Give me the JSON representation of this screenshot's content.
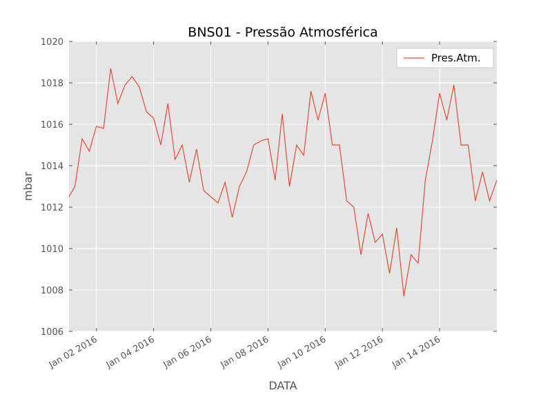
{
  "chart_data": {
    "type": "line",
    "title": "BNS01 - Pressão Atmosférica",
    "x_label": "DATA",
    "y_label": "mbar",
    "x": [
      "2016-01-01T01:00",
      "2016-01-01T06:00",
      "2016-01-01T12:00",
      "2016-01-01T18:00",
      "2016-01-02T00:00",
      "2016-01-02T06:00",
      "2016-01-02T12:00",
      "2016-01-02T18:00",
      "2016-01-03T00:00",
      "2016-01-03T06:00",
      "2016-01-03T12:00",
      "2016-01-03T18:00",
      "2016-01-04T00:00",
      "2016-01-04T06:00",
      "2016-01-04T12:00",
      "2016-01-04T18:00",
      "2016-01-05T00:00",
      "2016-01-05T06:00",
      "2016-01-05T12:00",
      "2016-01-05T18:00",
      "2016-01-06T00:00",
      "2016-01-06T06:00",
      "2016-01-06T12:00",
      "2016-01-06T18:00",
      "2016-01-07T00:00",
      "2016-01-07T06:00",
      "2016-01-07T12:00",
      "2016-01-07T18:00",
      "2016-01-08T00:00",
      "2016-01-08T06:00",
      "2016-01-08T12:00",
      "2016-01-08T18:00",
      "2016-01-09T00:00",
      "2016-01-09T06:00",
      "2016-01-09T12:00",
      "2016-01-09T18:00",
      "2016-01-10T00:00",
      "2016-01-10T06:00",
      "2016-01-10T12:00",
      "2016-01-10T18:00",
      "2016-01-11T00:00",
      "2016-01-11T06:00",
      "2016-01-11T12:00",
      "2016-01-11T18:00",
      "2016-01-12T00:00",
      "2016-01-12T06:00",
      "2016-01-12T12:00",
      "2016-01-12T18:00",
      "2016-01-13T00:00",
      "2016-01-13T06:00",
      "2016-01-13T12:00",
      "2016-01-13T18:00",
      "2016-01-14T00:00",
      "2016-01-14T06:00",
      "2016-01-14T12:00",
      "2016-01-14T18:00",
      "2016-01-15T00:00",
      "2016-01-15T06:00",
      "2016-01-15T12:00",
      "2016-01-15T18:00",
      "2016-01-16T00:00"
    ],
    "series": [
      {
        "name": "Pres.Atm.",
        "color": "#e24a33",
        "values": [
          1012.5,
          1013.0,
          1015.3,
          1014.7,
          1015.9,
          1015.8,
          1018.7,
          1017.0,
          1017.9,
          1018.3,
          1017.8,
          1016.6,
          1016.3,
          1015.0,
          1017.0,
          1014.3,
          1015.0,
          1013.2,
          1014.8,
          1012.8,
          1012.5,
          1012.2,
          1013.2,
          1011.5,
          1013.0,
          1013.7,
          1015.0,
          1015.2,
          1015.3,
          1013.3,
          1016.5,
          1013.0,
          1015.0,
          1014.5,
          1017.6,
          1016.2,
          1017.5,
          1015.0,
          1015.0,
          1012.3,
          1012.0,
          1009.7,
          1011.7,
          1010.3,
          1010.7,
          1008.8,
          1011.0,
          1007.7,
          1009.7,
          1009.3,
          1013.3,
          1015.2,
          1017.5,
          1016.2,
          1017.9,
          1015.0,
          1015.0,
          1012.3,
          1013.7,
          1012.3,
          1013.3
        ]
      }
    ],
    "xlim": [
      "2016-01-01T01:00",
      "2016-01-16T00:00"
    ],
    "xticks": [
      {
        "value": "2016-01-02T00:00",
        "label": "Jan 02 2016"
      },
      {
        "value": "2016-01-04T00:00",
        "label": "Jan 04 2016"
      },
      {
        "value": "2016-01-06T00:00",
        "label": "Jan 06 2016"
      },
      {
        "value": "2016-01-08T00:00",
        "label": "Jan 08 2016"
      },
      {
        "value": "2016-01-10T00:00",
        "label": "Jan 10 2016"
      },
      {
        "value": "2016-01-12T00:00",
        "label": "Jan 12 2016"
      },
      {
        "value": "2016-01-14T00:00",
        "label": "Jan 14 2016"
      }
    ],
    "ylim": [
      1006,
      1020
    ],
    "yticks": [
      1006,
      1008,
      1010,
      1012,
      1014,
      1016,
      1018,
      1020
    ],
    "grid": true,
    "legend": "upper right"
  }
}
